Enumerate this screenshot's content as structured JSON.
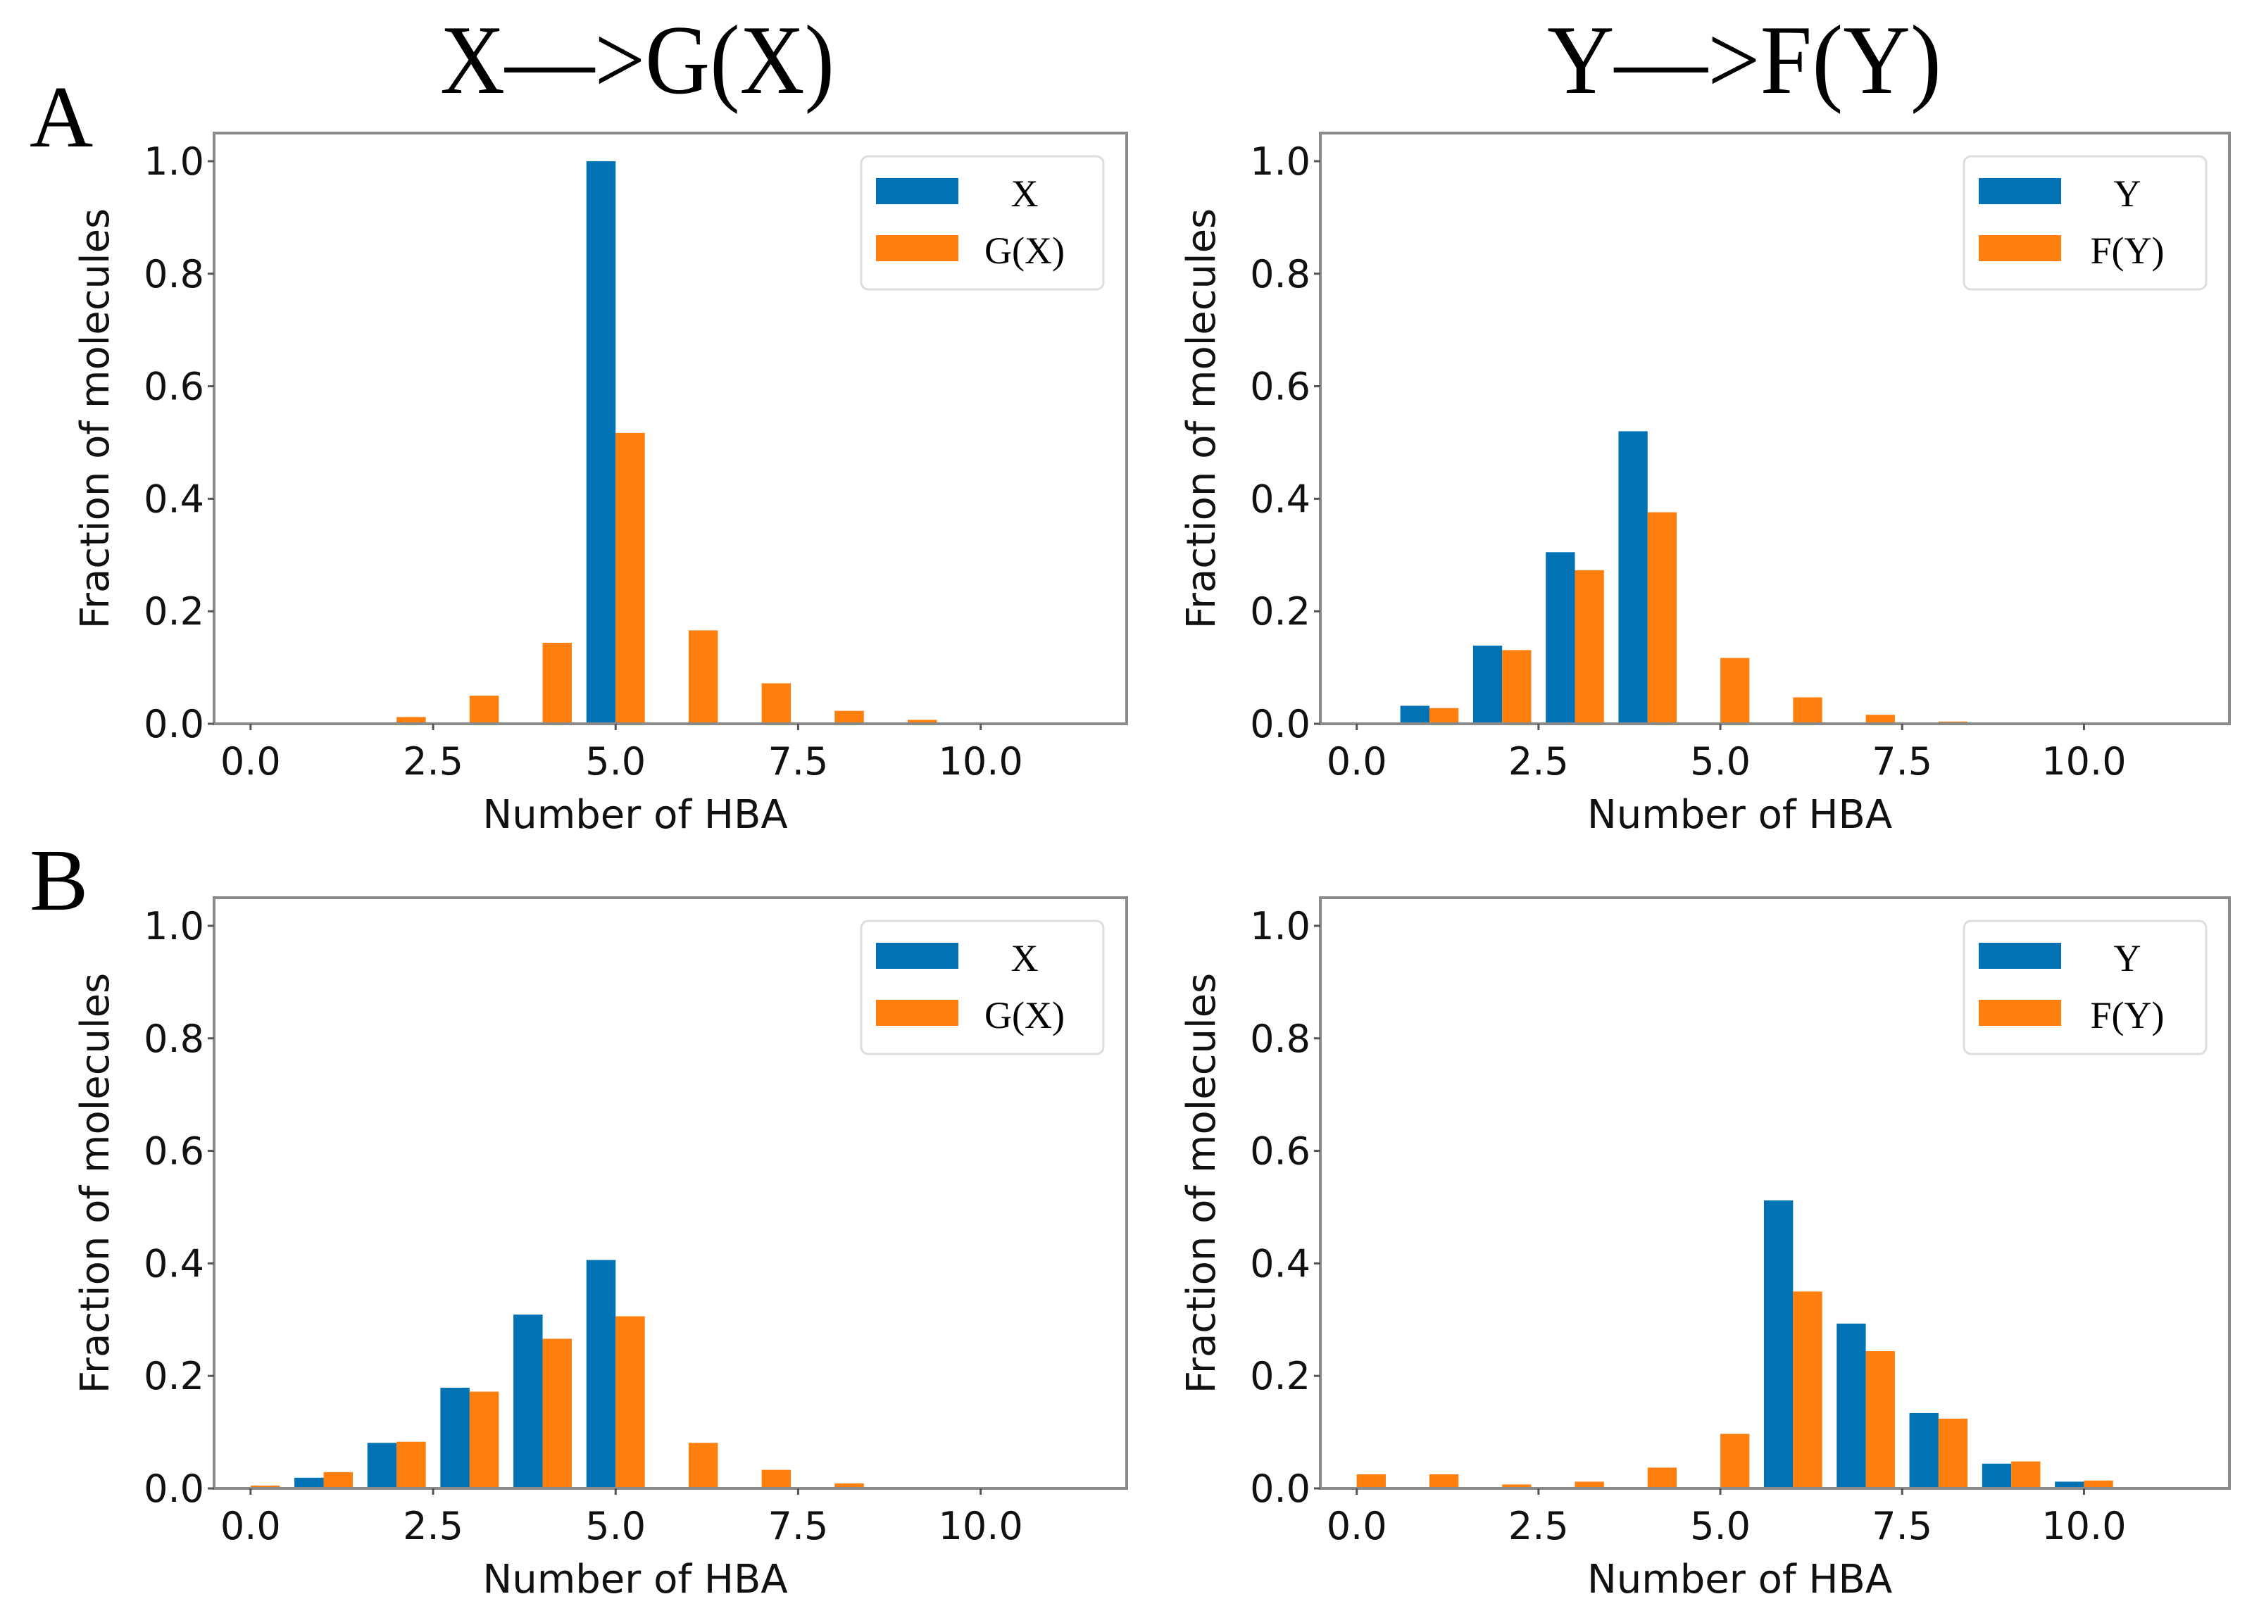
{
  "colors": {
    "blue": "#0173B5",
    "orange": "#FF7F0E",
    "spine": "#8a8a8a",
    "legend_border": "#dddddd"
  },
  "columns": [
    {
      "title": "X—>G(X)"
    },
    {
      "title": "Y—>F(Y)"
    }
  ],
  "panel_labels": [
    "A",
    "B"
  ],
  "chart_data": [
    {
      "type": "bar",
      "panel": "A",
      "column": 0,
      "xlabel": "Number of HBA",
      "ylabel": "Fraction of molecules",
      "xlim": [
        -0.5,
        12
      ],
      "ylim": [
        0,
        1.05
      ],
      "xticks": [
        "0.0",
        "2.5",
        "5.0",
        "7.5",
        "10.0"
      ],
      "yticks": [
        "0.0",
        "0.2",
        "0.4",
        "0.6",
        "0.8",
        "1.0"
      ],
      "legend": "top-right",
      "categories": [
        0,
        1,
        2,
        3,
        4,
        5,
        6,
        7,
        8,
        9,
        10,
        11
      ],
      "series": [
        {
          "name": "X",
          "color": "blue",
          "values": [
            0,
            0,
            0,
            0,
            0,
            1.0,
            0,
            0,
            0,
            0,
            0,
            0
          ]
        },
        {
          "name": "G(X)",
          "color": "orange",
          "values": [
            0,
            0.002,
            0.012,
            0.05,
            0.144,
            0.517,
            0.166,
            0.072,
            0.023,
            0.007,
            0,
            0
          ]
        }
      ]
    },
    {
      "type": "bar",
      "panel": "A",
      "column": 1,
      "xlabel": "Number of HBA",
      "ylabel": "Fraction of molecules",
      "xlim": [
        -0.5,
        12
      ],
      "ylim": [
        0,
        1.05
      ],
      "xticks": [
        "0.0",
        "2.5",
        "5.0",
        "7.5",
        "10.0"
      ],
      "yticks": [
        "0.0",
        "0.2",
        "0.4",
        "0.6",
        "0.8",
        "1.0"
      ],
      "legend": "top-right",
      "categories": [
        0,
        1,
        2,
        3,
        4,
        5,
        6,
        7,
        8,
        9,
        10,
        11
      ],
      "series": [
        {
          "name": "Y",
          "color": "blue",
          "values": [
            0,
            0.032,
            0.139,
            0.305,
            0.52,
            0,
            0,
            0,
            0,
            0,
            0,
            0
          ]
        },
        {
          "name": "F(Y)",
          "color": "orange",
          "values": [
            0.001,
            0.028,
            0.131,
            0.273,
            0.376,
            0.117,
            0.047,
            0.016,
            0.004,
            0.001,
            0,
            0
          ]
        }
      ]
    },
    {
      "type": "bar",
      "panel": "B",
      "column": 0,
      "xlabel": "Number of HBA",
      "ylabel": "Fraction of molecules",
      "xlim": [
        -0.5,
        12
      ],
      "ylim": [
        0,
        1.05
      ],
      "xticks": [
        "0.0",
        "2.5",
        "5.0",
        "7.5",
        "10.0"
      ],
      "yticks": [
        "0.0",
        "0.2",
        "0.4",
        "0.6",
        "0.8",
        "1.0"
      ],
      "legend": "top-right",
      "categories": [
        0,
        1,
        2,
        3,
        4,
        5,
        6,
        7,
        8,
        9,
        10,
        11
      ],
      "series": [
        {
          "name": "X",
          "color": "blue",
          "values": [
            0,
            0.019,
            0.081,
            0.179,
            0.309,
            0.406,
            0,
            0,
            0,
            0,
            0,
            0
          ]
        },
        {
          "name": "G(X)",
          "color": "orange",
          "values": [
            0.005,
            0.029,
            0.083,
            0.172,
            0.266,
            0.306,
            0.081,
            0.033,
            0.009,
            0.002,
            0,
            0
          ]
        }
      ]
    },
    {
      "type": "bar",
      "panel": "B",
      "column": 1,
      "xlabel": "Number of HBA",
      "ylabel": "Fraction of molecules",
      "xlim": [
        -0.5,
        12
      ],
      "ylim": [
        0,
        1.05
      ],
      "xticks": [
        "0.0",
        "2.5",
        "5.0",
        "7.5",
        "10.0"
      ],
      "yticks": [
        "0.0",
        "0.2",
        "0.4",
        "0.6",
        "0.8",
        "1.0"
      ],
      "legend": "top-right",
      "categories": [
        0,
        1,
        2,
        3,
        4,
        5,
        6,
        7,
        8,
        9,
        10,
        11
      ],
      "series": [
        {
          "name": "Y",
          "color": "blue",
          "values": [
            0,
            0,
            0,
            0,
            0,
            0,
            0.512,
            0.293,
            0.134,
            0.044,
            0.012,
            0
          ]
        },
        {
          "name": "F(Y)",
          "color": "orange",
          "values": [
            0.025,
            0.025,
            0.007,
            0.012,
            0.037,
            0.097,
            0.35,
            0.244,
            0.124,
            0.048,
            0.014,
            0.002
          ]
        }
      ]
    }
  ]
}
